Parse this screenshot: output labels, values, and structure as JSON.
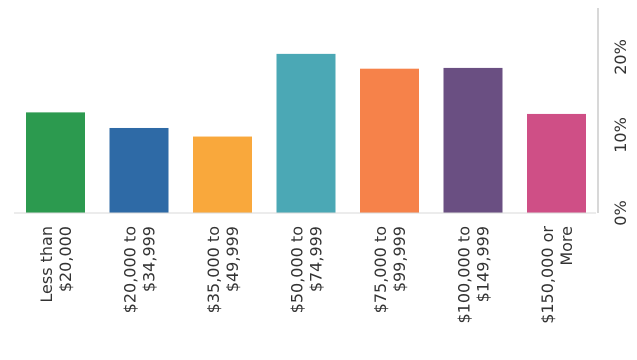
{
  "chart_data": {
    "type": "bar",
    "categories": [
      [
        "Less than",
        "$20,000"
      ],
      [
        "$20,000 to",
        "$34,999"
      ],
      [
        "$35,000 to",
        "$49,999"
      ],
      [
        "$50,000 to",
        "$74,999"
      ],
      [
        "$75,000 to",
        "$99,999"
      ],
      [
        "$100,000 to",
        "$149,999"
      ],
      [
        "$150,000 or",
        "More"
      ]
    ],
    "values": [
      12.9,
      10.9,
      9.8,
      20.4,
      18.5,
      18.6,
      12.7
    ],
    "colors": [
      "#2c9a4f",
      "#2e6aa6",
      "#f9a83c",
      "#4ba8b5",
      "#f6824a",
      "#6a4f82",
      "#cf4f86"
    ],
    "y_ticks": [
      "0%",
      "10%",
      "20%"
    ],
    "ylim": [
      0,
      25
    ],
    "grid": false,
    "orientation": "rotated-90-clockwise"
  }
}
